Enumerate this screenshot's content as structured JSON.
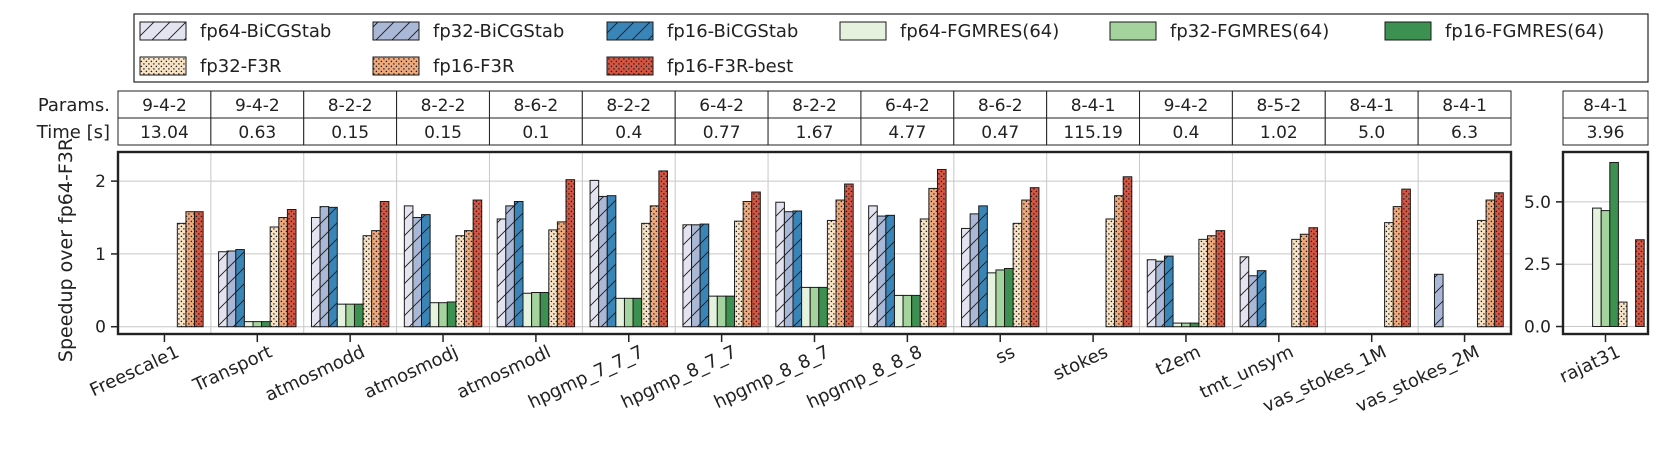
{
  "chart_data": {
    "type": "bar",
    "ylabel": "Speedup over fp64-F3R",
    "table_labels": [
      "Params.",
      "Time [s]"
    ],
    "colors": {
      "fp64-BiCGStab": "#e3e4ef",
      "fp32-BiCGStab": "#a9b8d6",
      "fp16-BiCGStab": "#3a85b8",
      "fp64-FGMRES(64)": "#e4f2de",
      "fp32-FGMRES(64)": "#a5d39d",
      "fp16-FGMRES(64)": "#3c9150",
      "fp32-F3R": "#f8e3c6",
      "fp16-F3R": "#eeaa7d",
      "fp16-F3R-best": "#d35542"
    },
    "series": [
      {
        "name": "fp64-BiCGStab",
        "pattern": "hatch"
      },
      {
        "name": "fp32-BiCGStab",
        "pattern": "hatch"
      },
      {
        "name": "fp16-BiCGStab",
        "pattern": "hatch"
      },
      {
        "name": "fp64-FGMRES(64)",
        "pattern": "none"
      },
      {
        "name": "fp32-FGMRES(64)",
        "pattern": "none"
      },
      {
        "name": "fp16-FGMRES(64)",
        "pattern": "none"
      },
      {
        "name": "fp32-F3R",
        "pattern": "dots"
      },
      {
        "name": "fp16-F3R",
        "pattern": "dots"
      },
      {
        "name": "fp16-F3R-best",
        "pattern": "dots"
      }
    ],
    "legend_order": [
      "fp64-BiCGStab",
      "fp32-BiCGStab",
      "fp16-BiCGStab",
      "fp64-FGMRES(64)",
      "fp32-FGMRES(64)",
      "fp16-FGMRES(64)",
      "fp32-F3R",
      "fp16-F3R",
      "fp16-F3R-best"
    ],
    "panels": [
      {
        "id": "main",
        "ylim": [
          -0.1,
          2.4
        ],
        "yticks": [
          0,
          1,
          2
        ],
        "ytick_labels": [
          "0",
          "1",
          "2"
        ],
        "categories": [
          "Freescale1",
          "Transport",
          "atmosmodd",
          "atmosmodj",
          "atmosmodl",
          "hpgmp_7_7_7",
          "hpgmp_8_7_7",
          "hpgmp_8_8_7",
          "hpgmp_8_8_8",
          "ss",
          "stokes",
          "t2em",
          "tmt_unsym",
          "vas_stokes_1M",
          "vas_stokes_2M"
        ],
        "params": [
          "9-4-2",
          "9-4-2",
          "8-2-2",
          "8-2-2",
          "8-6-2",
          "8-2-2",
          "6-4-2",
          "8-2-2",
          "6-4-2",
          "8-6-2",
          "8-4-1",
          "9-4-2",
          "8-5-2",
          "8-4-1",
          "8-4-1"
        ],
        "times": [
          "13.04",
          "0.63",
          "0.15",
          "0.15",
          "0.1",
          "0.4",
          "0.77",
          "1.67",
          "4.77",
          "0.47",
          "115.19",
          "0.4",
          "1.02",
          "5.0",
          "6.3"
        ],
        "values": [
          [
            null,
            null,
            null,
            null,
            null,
            null,
            1.42,
            1.58,
            1.58
          ],
          [
            1.03,
            1.04,
            1.06,
            0.07,
            0.07,
            0.07,
            1.37,
            1.5,
            1.61
          ],
          [
            1.5,
            1.65,
            1.64,
            0.31,
            0.31,
            0.31,
            1.25,
            1.32,
            1.72
          ],
          [
            1.66,
            1.5,
            1.54,
            0.33,
            0.33,
            0.34,
            1.25,
            1.32,
            1.74
          ],
          [
            1.48,
            1.66,
            1.72,
            0.46,
            0.47,
            0.47,
            1.33,
            1.44,
            2.02
          ],
          [
            2.01,
            1.79,
            1.8,
            0.39,
            0.39,
            0.39,
            1.42,
            1.66,
            2.14
          ],
          [
            1.4,
            1.4,
            1.41,
            0.42,
            0.42,
            0.42,
            1.45,
            1.72,
            1.85
          ],
          [
            1.71,
            1.58,
            1.59,
            0.54,
            0.54,
            0.54,
            1.46,
            1.74,
            1.96
          ],
          [
            1.66,
            1.52,
            1.53,
            0.43,
            0.43,
            0.43,
            1.48,
            1.9,
            2.16
          ],
          [
            1.35,
            1.55,
            1.66,
            0.74,
            0.78,
            0.8,
            1.42,
            1.74,
            1.91
          ],
          [
            null,
            null,
            null,
            null,
            null,
            null,
            1.48,
            1.8,
            2.06
          ],
          [
            0.92,
            0.9,
            0.97,
            0.05,
            0.05,
            0.05,
            1.2,
            1.25,
            1.32
          ],
          [
            0.96,
            0.7,
            0.77,
            null,
            null,
            null,
            1.2,
            1.27,
            1.36
          ],
          [
            null,
            null,
            null,
            null,
            null,
            null,
            1.43,
            1.65,
            1.89
          ],
          [
            null,
            0.72,
            null,
            null,
            null,
            null,
            1.46,
            1.74,
            1.84
          ]
        ]
      },
      {
        "id": "side",
        "ylim": [
          -0.3,
          7.0
        ],
        "yticks": [
          0.0,
          2.5,
          5.0
        ],
        "ytick_labels": [
          "0.0",
          "2.5",
          "5.0"
        ],
        "categories": [
          "rajat31"
        ],
        "params": [
          "8-4-1"
        ],
        "times": [
          "3.96"
        ],
        "values": [
          [
            null,
            null,
            null,
            4.75,
            4.65,
            6.58,
            0.98,
            null,
            3.48
          ]
        ]
      }
    ]
  }
}
